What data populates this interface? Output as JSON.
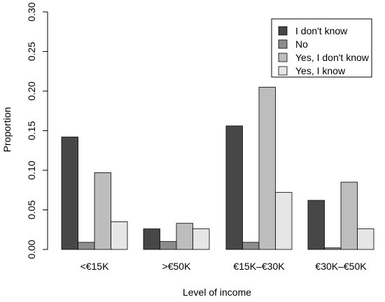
{
  "chart_data": {
    "type": "bar",
    "categories": [
      "<€15K",
      ">€50K",
      "€15K–€30K",
      "€30K–€50K"
    ],
    "series": [
      {
        "name": "I don't know",
        "values": [
          0.142,
          0.026,
          0.156,
          0.062
        ]
      },
      {
        "name": "No",
        "values": [
          0.009,
          0.01,
          0.009,
          0.002
        ]
      },
      {
        "name": "Yes, I don't know",
        "values": [
          0.097,
          0.033,
          0.205,
          0.085
        ]
      },
      {
        "name": "Yes, I know",
        "values": [
          0.035,
          0.026,
          0.072,
          0.026
        ]
      }
    ],
    "colors": [
      "#474747",
      "#8c8c8c",
      "#bdbdbd",
      "#e6e6e6"
    ],
    "title": "",
    "xlabel": "Level of income",
    "ylabel": "Proportion",
    "ylim": [
      0,
      0.3
    ],
    "yticks": [
      "0.00",
      "0.05",
      "0.10",
      "0.15",
      "0.20",
      "0.25",
      "0.30"
    ],
    "grid": false,
    "legend_position": "top-right"
  }
}
